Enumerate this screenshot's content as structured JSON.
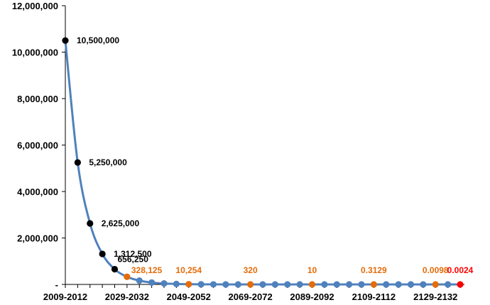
{
  "chart_data": {
    "type": "line",
    "title": "",
    "xlabel": "",
    "ylabel": "",
    "ylim": [
      0,
      12000000
    ],
    "grid": false,
    "legend": "none",
    "y_ticks": [
      0,
      2000000,
      4000000,
      6000000,
      8000000,
      10000000,
      12000000
    ],
    "y_tick_labels": [
      "-",
      "2,000,000",
      "4,000,000",
      "6,000,000",
      "8,000,000",
      "10,000,000",
      "12,000,000"
    ],
    "x_tick_labels": [
      "2009-2012",
      "2029-2032",
      "2049-2052",
      "2069-2072",
      "2089-2092",
      "2109-2112",
      "2129-2132"
    ],
    "series": [
      {
        "values": [
          10500000,
          5250000,
          2625000,
          1312500,
          656250,
          328125,
          164062,
          82031,
          41016,
          20508,
          10254,
          5127,
          2564,
          1282,
          641,
          320,
          160,
          80,
          40,
          20,
          10,
          5,
          2.5,
          1.25,
          0.63,
          0.3129,
          0.16,
          0.08,
          0.04,
          0.02,
          0.0098,
          0.0049,
          0.0024
        ],
        "point_colors": [
          "#000000",
          "#000000",
          "#000000",
          "#000000",
          "#000000",
          "#E46C0A",
          "#4F81BD",
          "#4F81BD",
          "#4F81BD",
          "#4F81BD",
          "#E46C0A",
          "#4F81BD",
          "#4F81BD",
          "#4F81BD",
          "#4F81BD",
          "#E46C0A",
          "#4F81BD",
          "#4F81BD",
          "#4F81BD",
          "#4F81BD",
          "#E46C0A",
          "#4F81BD",
          "#4F81BD",
          "#4F81BD",
          "#4F81BD",
          "#E46C0A",
          "#4F81BD",
          "#4F81BD",
          "#4F81BD",
          "#4F81BD",
          "#E46C0A",
          "#4F81BD",
          "#FF0000"
        ]
      }
    ],
    "data_labels": [
      {
        "index": 0,
        "text": "10,500,000",
        "color": "#000000"
      },
      {
        "index": 1,
        "text": "5,250,000",
        "color": "#000000"
      },
      {
        "index": 2,
        "text": "2,625,000",
        "color": "#000000"
      },
      {
        "index": 3,
        "text": "1,312,500",
        "color": "#000000"
      },
      {
        "index": 4,
        "text": "656,250",
        "color": "#000000"
      },
      {
        "index": 5,
        "text": "328,125",
        "color": "#E46C0A"
      },
      {
        "index": 10,
        "text": "10,254",
        "color": "#E46C0A"
      },
      {
        "index": 15,
        "text": "320",
        "color": "#E46C0A"
      },
      {
        "index": 20,
        "text": "10",
        "color": "#E46C0A"
      },
      {
        "index": 25,
        "text": "0.3129",
        "color": "#E46C0A"
      },
      {
        "index": 30,
        "text": "0.0098",
        "color": "#E46C0A"
      },
      {
        "index": 32,
        "text": "0.0024",
        "color": "#FF0000"
      }
    ],
    "line_color": "#4F81BD"
  }
}
